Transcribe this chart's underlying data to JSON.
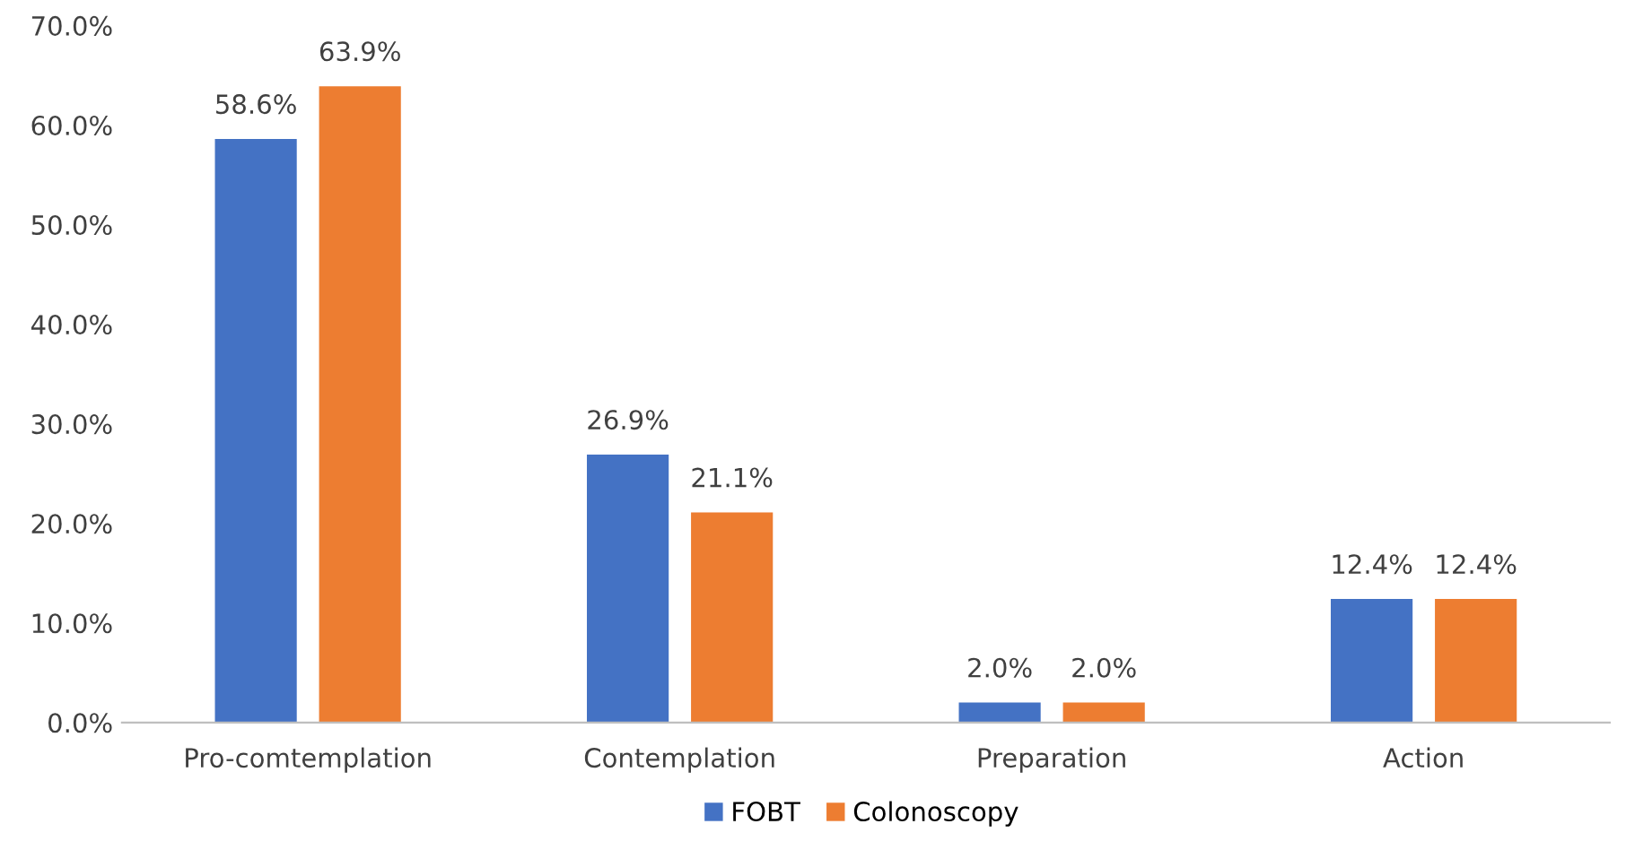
{
  "chart_data": {
    "type": "bar",
    "categories": [
      "Pro-comtemplation",
      "Contemplation",
      "Preparation",
      "Action"
    ],
    "series": [
      {
        "name": "FOBT",
        "color": "#4472c4",
        "values": [
          58.6,
          26.9,
          2.0,
          12.4
        ],
        "value_labels": [
          "58.6%",
          "26.9%",
          "2.0%",
          "12.4%"
        ]
      },
      {
        "name": "Colonoscopy",
        "color": "#ed7d31",
        "values": [
          63.9,
          21.1,
          2.0,
          12.4
        ],
        "value_labels": [
          "63.9%",
          "21.1%",
          "2.0%",
          "12.4%"
        ]
      }
    ],
    "ylim": [
      0,
      70
    ],
    "yticks": [
      {
        "value": 0,
        "label": "0.0%"
      },
      {
        "value": 10,
        "label": "10.0%"
      },
      {
        "value": 20,
        "label": "20.0%"
      },
      {
        "value": 30,
        "label": "30.0%"
      },
      {
        "value": 40,
        "label": "40.0%"
      },
      {
        "value": 50,
        "label": "50.0%"
      },
      {
        "value": 60,
        "label": "60.0%"
      },
      {
        "value": 70,
        "label": "70.0%"
      }
    ],
    "grid": false,
    "legend": "bottom"
  }
}
